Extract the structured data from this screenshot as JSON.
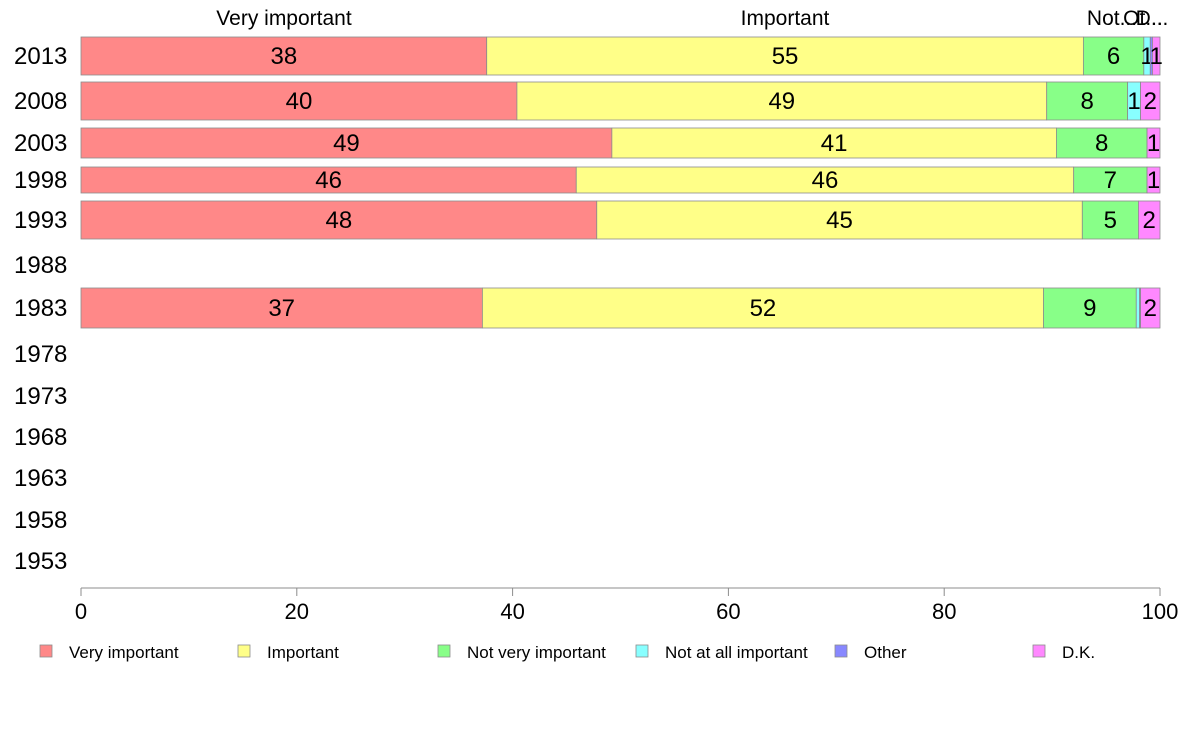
{
  "chart_data": {
    "type": "bar",
    "orientation": "horizontal",
    "stacked": true,
    "title": "",
    "xlabel": "",
    "ylabel": "",
    "xlim": [
      0,
      100
    ],
    "x_ticks": [
      "0",
      "20",
      "40",
      "60",
      "80",
      "100"
    ],
    "grid": false,
    "legend_position": "bottom",
    "categories": [
      "2013",
      "2008",
      "2003",
      "1998",
      "1993",
      "1988",
      "1983",
      "1978",
      "1973",
      "1968",
      "1963",
      "1958",
      "1953"
    ],
    "series": [
      {
        "name": "Very important",
        "color": "#ff8888",
        "values": [
          37.6,
          40.4,
          49.2,
          45.9,
          47.8,
          null,
          37.2,
          null,
          null,
          null,
          null,
          null,
          null
        ],
        "labels": [
          "38",
          "40",
          "49",
          "46",
          "48",
          "",
          "37",
          "",
          "",
          "",
          "",
          "",
          ""
        ]
      },
      {
        "name": "Important",
        "color": "#ffff88",
        "values": [
          55.3,
          49.1,
          41.2,
          46.1,
          45.0,
          null,
          52.0,
          null,
          null,
          null,
          null,
          null,
          null
        ],
        "labels": [
          "55",
          "49",
          "41",
          "46",
          "45",
          "",
          "52",
          "",
          "",
          "",
          "",
          "",
          ""
        ]
      },
      {
        "name": "Not very important",
        "color": "#88ff88",
        "values": [
          5.6,
          7.5,
          8.4,
          6.8,
          5.2,
          null,
          8.6,
          null,
          null,
          null,
          null,
          null,
          null
        ],
        "labels": [
          "6",
          "8",
          "8",
          "7",
          "5",
          "",
          "9",
          "",
          "",
          "",
          "",
          "",
          ""
        ]
      },
      {
        "name": "Not at all important",
        "color": "#88ffff",
        "values": [
          0.6,
          1.2,
          0.0,
          0.0,
          0.0,
          null,
          0.3,
          null,
          null,
          null,
          null,
          null,
          null
        ],
        "labels": [
          "1",
          "1",
          "",
          "",
          "",
          "",
          "",
          "",
          "",
          "",
          "",
          "",
          ""
        ]
      },
      {
        "name": "Other",
        "color": "#8888ff",
        "values": [
          0.2,
          0.0,
          0.0,
          0.0,
          0.0,
          null,
          0.1,
          null,
          null,
          null,
          null,
          null,
          null
        ],
        "labels": [
          "",
          "",
          "",
          "",
          "",
          "",
          "",
          "",
          "",
          "",
          "",
          "",
          ""
        ]
      },
      {
        "name": "D.K.",
        "color": "#ff88ff",
        "values": [
          0.7,
          1.8,
          1.2,
          1.2,
          2.0,
          null,
          1.8,
          null,
          null,
          null,
          null,
          null,
          null
        ],
        "labels": [
          "1",
          "2",
          "1",
          "1",
          "2",
          "",
          "2",
          "",
          "",
          "",
          "",
          "",
          ""
        ]
      }
    ],
    "top_labels": [
      "Very important",
      "Important",
      "Not...",
      "Ot...",
      "D..."
    ]
  }
}
